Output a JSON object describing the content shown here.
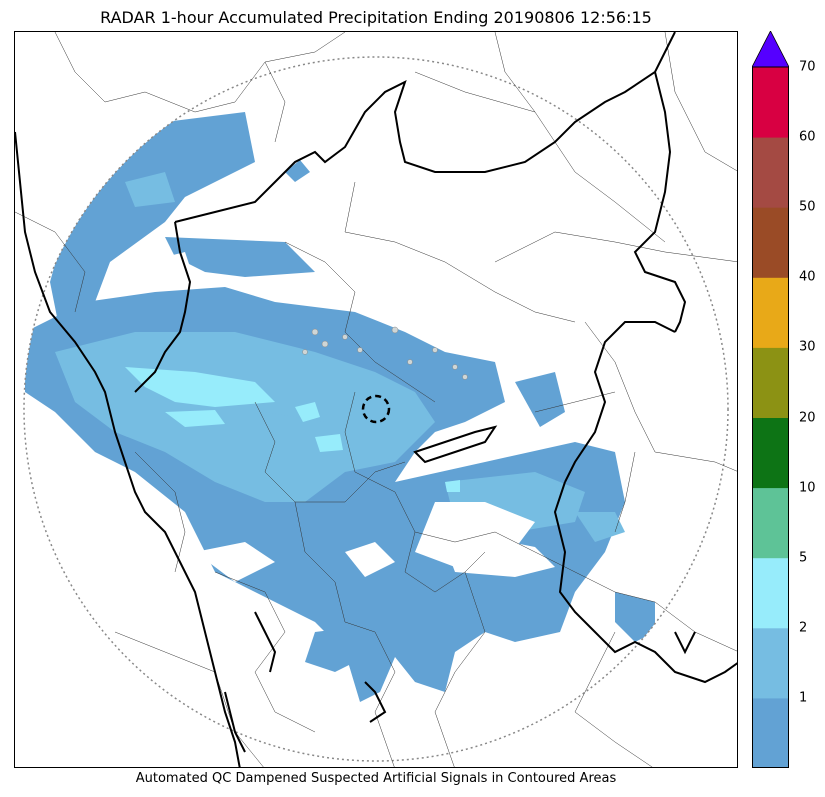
{
  "title": "RADAR 1-hour Accumulated Precipitation Ending 20190806 12:56:15",
  "footer": "Automated QC Dampened Suspected Artificial Signals in Contoured Areas",
  "colorbar": {
    "levels": [
      {
        "label": "",
        "color": "#62a2d4"
      },
      {
        "label": "1",
        "color": "#76bde2"
      },
      {
        "label": "2",
        "color": "#97ecfb"
      },
      {
        "label": "5",
        "color": "#5ec397"
      },
      {
        "label": "10",
        "color": "#0d7415"
      },
      {
        "label": "20",
        "color": "#8c9214"
      },
      {
        "label": "30",
        "color": "#e8a918"
      },
      {
        "label": "40",
        "color": "#9a4b26"
      },
      {
        "label": "50",
        "color": "#a44a43"
      },
      {
        "label": "60",
        "color": "#d80042"
      },
      {
        "label": "70",
        "color": ""
      }
    ],
    "extend_color": "#5500ff"
  },
  "legend_colors": {
    "light": "#62a2d4",
    "moderate": "#76bde2",
    "heavy": "#97ecfb"
  }
}
